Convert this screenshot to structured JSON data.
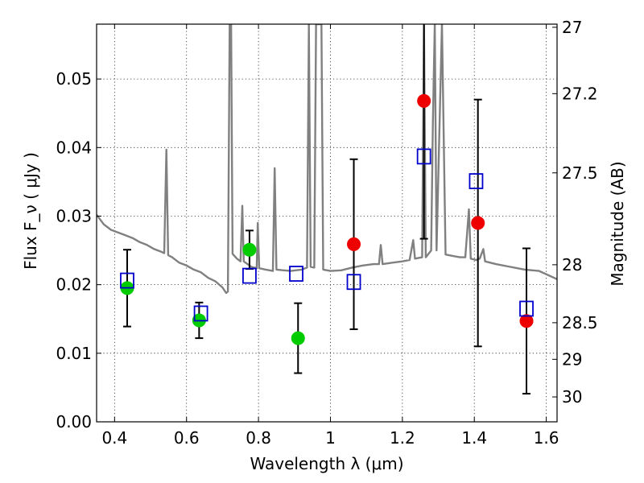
{
  "chart_data": {
    "type": "scatter",
    "xlabel": "Wavelength  λ (μm)",
    "ylabel_left": "Flux  F_ν  ( μJy )",
    "ylabel_right": "Magnitude (AB)",
    "xlim": [
      0.35,
      1.63
    ],
    "ylim": [
      0.0,
      0.058
    ],
    "grid": true,
    "x_ticks": [
      {
        "value": 0.4,
        "label": "0.4"
      },
      {
        "value": 0.6,
        "label": "0.6"
      },
      {
        "value": 0.8,
        "label": "0.8"
      },
      {
        "value": 1.0,
        "label": "1"
      },
      {
        "value": 1.2,
        "label": "1.2"
      },
      {
        "value": 1.4,
        "label": "1.4"
      },
      {
        "value": 1.6,
        "label": "1.6"
      }
    ],
    "y_ticks": [
      {
        "value": 0.0,
        "label": "0.00"
      },
      {
        "value": 0.01,
        "label": "0.01"
      },
      {
        "value": 0.02,
        "label": "0.02"
      },
      {
        "value": 0.03,
        "label": "0.03"
      },
      {
        "value": 0.04,
        "label": "0.04"
      },
      {
        "value": 0.05,
        "label": "0.05"
      }
    ],
    "right_ticks": [
      {
        "mag": 27,
        "label": "27"
      },
      {
        "mag": 27.2,
        "label": "27.2"
      },
      {
        "mag": 27.5,
        "label": "27.5"
      },
      {
        "mag": 28,
        "label": "28"
      },
      {
        "mag": 28.5,
        "label": "28.5"
      },
      {
        "mag": 29,
        "label": "29"
      },
      {
        "mag": 30,
        "label": "30"
      }
    ],
    "series": [
      {
        "marker": "circle",
        "color": "#00cc00",
        "points": [
          {
            "x": 0.435,
            "y": 0.0195,
            "err": 0.0056
          },
          {
            "x": 0.635,
            "y": 0.0148,
            "err": 0.0026
          },
          {
            "x": 0.775,
            "y": 0.0251,
            "err": 0.0028
          },
          {
            "x": 0.91,
            "y": 0.0122,
            "err": 0.0051
          }
        ]
      },
      {
        "marker": "circle",
        "color": "#ee0000",
        "points": [
          {
            "x": 1.065,
            "y": 0.0259,
            "err": 0.0124
          },
          {
            "x": 1.26,
            "y": 0.0468,
            "err": 0.0201
          },
          {
            "x": 1.41,
            "y": 0.029,
            "err": 0.018
          },
          {
            "x": 1.545,
            "y": 0.0147,
            "err": 0.0106
          }
        ]
      },
      {
        "marker": "open-square",
        "color": "#0000cc",
        "points": [
          {
            "x": 0.435,
            "y": 0.0206
          },
          {
            "x": 0.64,
            "y": 0.0158
          },
          {
            "x": 0.775,
            "y": 0.0213
          },
          {
            "x": 0.905,
            "y": 0.0216
          },
          {
            "x": 1.065,
            "y": 0.0204
          },
          {
            "x": 1.26,
            "y": 0.0387
          },
          {
            "x": 1.405,
            "y": 0.0351
          },
          {
            "x": 1.545,
            "y": 0.0165
          }
        ]
      },
      {
        "type": "line",
        "color": "#808080",
        "points": [
          [
            0.35,
            0.0302
          ],
          [
            0.37,
            0.0288
          ],
          [
            0.39,
            0.028
          ],
          [
            0.41,
            0.0276
          ],
          [
            0.43,
            0.0272
          ],
          [
            0.45,
            0.0268
          ],
          [
            0.47,
            0.0262
          ],
          [
            0.49,
            0.0258
          ],
          [
            0.51,
            0.0252
          ],
          [
            0.53,
            0.0248
          ],
          [
            0.538,
            0.0246
          ],
          [
            0.544,
            0.0397
          ],
          [
            0.549,
            0.0243
          ],
          [
            0.56,
            0.024
          ],
          [
            0.58,
            0.0232
          ],
          [
            0.6,
            0.0228
          ],
          [
            0.62,
            0.0222
          ],
          [
            0.64,
            0.0218
          ],
          [
            0.66,
            0.021
          ],
          [
            0.68,
            0.0205
          ],
          [
            0.7,
            0.0196
          ],
          [
            0.71,
            0.0188
          ],
          [
            0.715,
            0.019
          ],
          [
            0.72,
            0.058
          ],
          [
            0.724,
            0.058
          ],
          [
            0.728,
            0.0245
          ],
          [
            0.74,
            0.0238
          ],
          [
            0.75,
            0.0234
          ],
          [
            0.755,
            0.0315
          ],
          [
            0.759,
            0.0234
          ],
          [
            0.78,
            0.0226
          ],
          [
            0.795,
            0.0224
          ],
          [
            0.798,
            0.029
          ],
          [
            0.802,
            0.0224
          ],
          [
            0.82,
            0.0222
          ],
          [
            0.84,
            0.022
          ],
          [
            0.845,
            0.037
          ],
          [
            0.85,
            0.0222
          ],
          [
            0.87,
            0.0221
          ],
          [
            0.89,
            0.022
          ],
          [
            0.92,
            0.0222
          ],
          [
            0.935,
            0.0225
          ],
          [
            0.94,
            0.058
          ],
          [
            0.945,
            0.0226
          ],
          [
            0.955,
            0.0225
          ],
          [
            0.96,
            0.058
          ],
          [
            0.975,
            0.058
          ],
          [
            0.98,
            0.0222
          ],
          [
            1.0,
            0.022
          ],
          [
            1.03,
            0.0221
          ],
          [
            1.06,
            0.0225
          ],
          [
            1.09,
            0.0228
          ],
          [
            1.12,
            0.023
          ],
          [
            1.135,
            0.023
          ],
          [
            1.14,
            0.0258
          ],
          [
            1.145,
            0.023
          ],
          [
            1.17,
            0.0232
          ],
          [
            1.2,
            0.0234
          ],
          [
            1.22,
            0.0236
          ],
          [
            1.23,
            0.0265
          ],
          [
            1.235,
            0.0238
          ],
          [
            1.255,
            0.024
          ],
          [
            1.26,
            0.058
          ],
          [
            1.265,
            0.024
          ],
          [
            1.28,
            0.025
          ],
          [
            1.285,
            0.044
          ],
          [
            1.29,
            0.058
          ],
          [
            1.295,
            0.025
          ],
          [
            1.31,
            0.058
          ],
          [
            1.32,
            0.0244
          ],
          [
            1.34,
            0.0242
          ],
          [
            1.36,
            0.024
          ],
          [
            1.375,
            0.024
          ],
          [
            1.385,
            0.031
          ],
          [
            1.39,
            0.0238
          ],
          [
            1.405,
            0.0236
          ],
          [
            1.415,
            0.0238
          ],
          [
            1.425,
            0.0252
          ],
          [
            1.43,
            0.0234
          ],
          [
            1.46,
            0.023
          ],
          [
            1.5,
            0.0226
          ],
          [
            1.54,
            0.0222
          ],
          [
            1.58,
            0.022
          ],
          [
            1.63,
            0.0208
          ]
        ]
      }
    ]
  }
}
